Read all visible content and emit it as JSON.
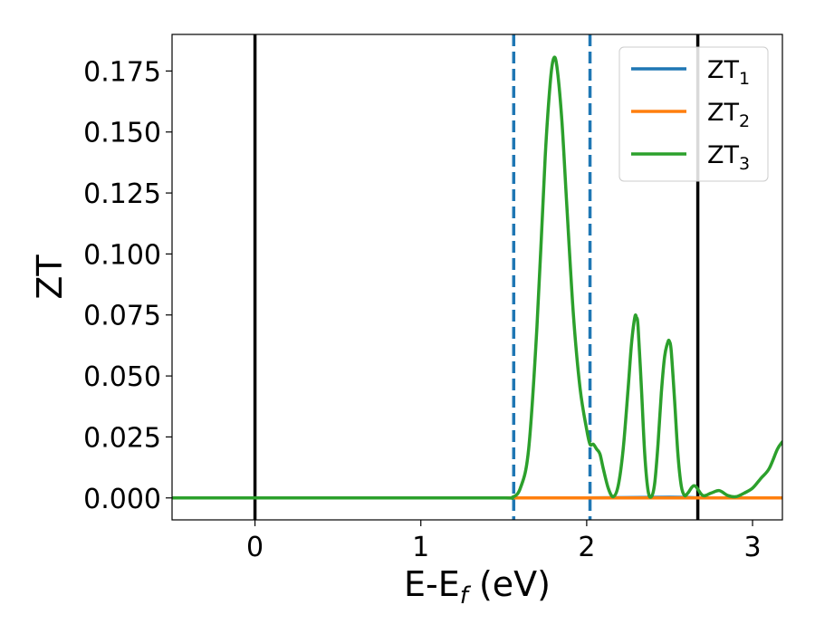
{
  "chart_data": {
    "type": "line",
    "xlabel": "E-E",
    "xlabel_subscript": "f",
    "xlabel_unit": " (eV)",
    "ylabel": "ZT",
    "xlim": [
      -0.5,
      3.18
    ],
    "ylim": [
      -0.009,
      0.19
    ],
    "xticks": [
      0,
      1,
      2,
      3
    ],
    "yticks": [
      0.0,
      0.025,
      0.05,
      0.075,
      0.1,
      0.125,
      0.15,
      0.175
    ],
    "ytick_labels": [
      "0.000",
      "0.025",
      "0.050",
      "0.075",
      "0.100",
      "0.125",
      "0.150",
      "0.175"
    ],
    "xtick_labels": [
      "0",
      "1",
      "2",
      "3"
    ],
    "grid": false,
    "legend_position": "top-right",
    "series": [
      {
        "name": "ZT",
        "subscript": "1",
        "color": "#1f77b4",
        "x": [
          -0.5,
          0.0,
          1.0,
          1.5,
          2.0,
          2.5,
          2.7,
          3.0,
          3.18
        ],
        "y": [
          0.0,
          0.0,
          0.0,
          0.0,
          0.0,
          0.0003,
          0.0,
          0.0,
          0.0
        ]
      },
      {
        "name": "ZT",
        "subscript": "2",
        "color": "#ff7f0e",
        "x": [
          -0.5,
          3.18
        ],
        "y": [
          0.0,
          0.0
        ]
      },
      {
        "name": "ZT",
        "subscript": "3",
        "color": "#2ca02c",
        "x": [
          -0.5,
          0.0,
          1.0,
          1.5,
          1.55,
          1.6,
          1.65,
          1.7,
          1.75,
          1.78,
          1.8,
          1.82,
          1.85,
          1.88,
          1.92,
          1.96,
          2.0,
          2.02,
          2.04,
          2.06,
          2.08,
          2.1,
          2.13,
          2.16,
          2.19,
          2.22,
          2.25,
          2.27,
          2.29,
          2.3,
          2.31,
          2.33,
          2.35,
          2.37,
          2.39,
          2.41,
          2.43,
          2.45,
          2.47,
          2.49,
          2.5,
          2.51,
          2.53,
          2.55,
          2.57,
          2.59,
          2.61,
          2.65,
          2.7,
          2.75,
          2.8,
          2.85,
          2.9,
          2.95,
          3.0,
          3.05,
          3.1,
          3.15,
          3.18
        ],
        "y": [
          0.0,
          0.0,
          0.0,
          0.0,
          0.0002,
          0.004,
          0.02,
          0.07,
          0.14,
          0.17,
          0.18,
          0.177,
          0.155,
          0.12,
          0.075,
          0.045,
          0.028,
          0.022,
          0.022,
          0.02,
          0.018,
          0.012,
          0.004,
          0.0005,
          0.005,
          0.02,
          0.045,
          0.063,
          0.074,
          0.074,
          0.07,
          0.045,
          0.018,
          0.003,
          0.0005,
          0.006,
          0.022,
          0.043,
          0.058,
          0.064,
          0.064,
          0.06,
          0.04,
          0.018,
          0.005,
          0.001,
          0.002,
          0.005,
          0.001,
          0.002,
          0.003,
          0.001,
          0.0005,
          0.002,
          0.004,
          0.008,
          0.012,
          0.02,
          0.023
        ]
      }
    ],
    "vlines": [
      {
        "x": 0.0,
        "color": "#000000",
        "style": "solid"
      },
      {
        "x": 2.67,
        "color": "#000000",
        "style": "solid"
      },
      {
        "x": 1.56,
        "color": "#1f77b4",
        "style": "dashed"
      },
      {
        "x": 2.02,
        "color": "#1f77b4",
        "style": "dashed"
      }
    ]
  }
}
